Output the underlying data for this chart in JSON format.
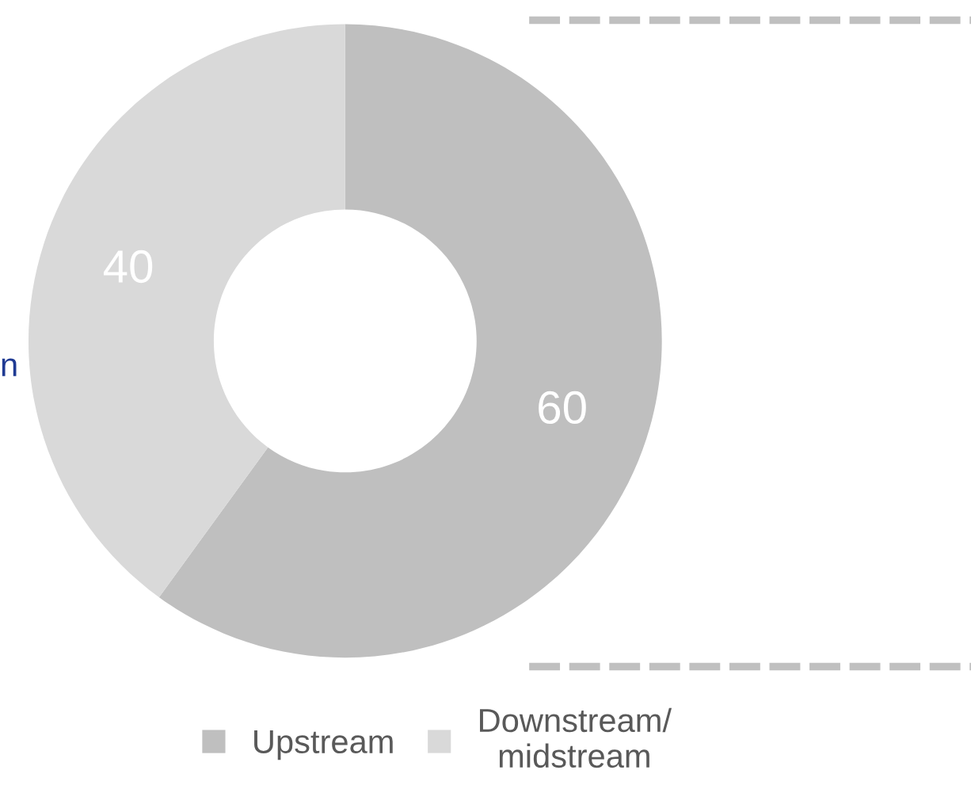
{
  "chart_data": {
    "type": "donut",
    "categories": [
      "Upstream",
      "Downstream/\nmidstream"
    ],
    "values": [
      60,
      40
    ],
    "colors": [
      "#bfbfbf",
      "#d9d9d9"
    ],
    "data_labels": true,
    "legend": "bottom",
    "annotations": [
      "n"
    ]
  }
}
